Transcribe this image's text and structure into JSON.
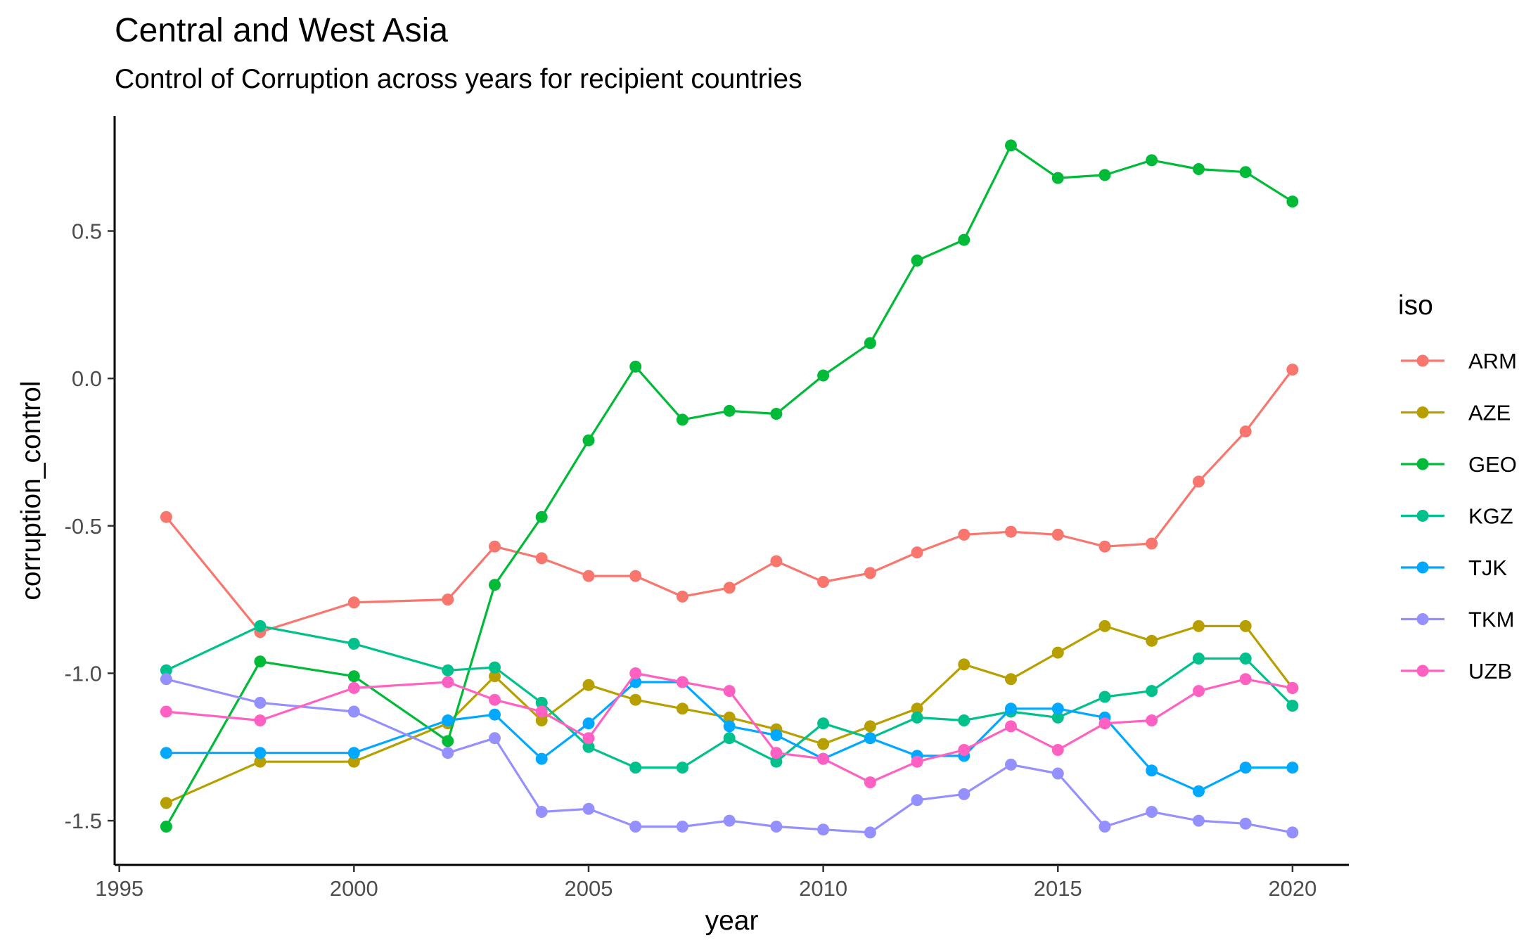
{
  "chart_data": {
    "type": "line",
    "title": "Central and West Asia",
    "subtitle": "Control of Corruption across years for recipient countries",
    "xlabel": "year",
    "ylabel": "corruption_control",
    "xlim": [
      1994.9,
      2021.2
    ],
    "ylim": [
      -1.65,
      0.89
    ],
    "x_ticks": [
      1995,
      2000,
      2005,
      2010,
      2015,
      2020
    ],
    "x_tick_labels": [
      "1995",
      "2000",
      "2005",
      "2010",
      "2015",
      "2020"
    ],
    "y_ticks": [
      -1.5,
      -1.0,
      -0.5,
      0.0,
      0.5
    ],
    "y_tick_labels": [
      "-1.5",
      "-1.0",
      "-0.5",
      "0.0",
      "0.5"
    ],
    "grid": false,
    "legend": {
      "title": "iso",
      "placement": "right"
    },
    "x": [
      1996,
      1998,
      2000,
      2002,
      2003,
      2004,
      2005,
      2006,
      2007,
      2008,
      2009,
      2010,
      2011,
      2012,
      2013,
      2014,
      2015,
      2016,
      2017,
      2018,
      2019,
      2020
    ],
    "series": [
      {
        "name": "ARM",
        "color": "#F8766D",
        "values": [
          -0.47,
          -0.86,
          -0.76,
          -0.75,
          -0.57,
          -0.61,
          -0.67,
          -0.67,
          -0.74,
          -0.71,
          -0.62,
          -0.69,
          -0.66,
          -0.59,
          -0.53,
          -0.52,
          -0.53,
          -0.57,
          -0.56,
          -0.35,
          -0.18,
          0.03
        ]
      },
      {
        "name": "AZE",
        "color": "#B79F00",
        "values": [
          -1.44,
          -1.3,
          -1.3,
          -1.17,
          -1.01,
          -1.16,
          -1.04,
          -1.09,
          -1.12,
          -1.15,
          -1.19,
          -1.24,
          -1.18,
          -1.12,
          -0.97,
          -1.02,
          -0.93,
          -0.84,
          -0.89,
          -0.84,
          -0.84,
          -1.05
        ]
      },
      {
        "name": "GEO",
        "color": "#00BA38",
        "values": [
          -1.52,
          -0.96,
          -1.01,
          -1.23,
          -0.7,
          -0.47,
          -0.21,
          0.04,
          -0.14,
          -0.11,
          -0.12,
          0.01,
          0.12,
          0.4,
          0.47,
          0.79,
          0.68,
          0.69,
          0.74,
          0.71,
          0.7,
          0.6
        ]
      },
      {
        "name": "KGZ",
        "color": "#00C08B",
        "values": [
          -0.99,
          -0.84,
          -0.9,
          -0.99,
          -0.98,
          -1.1,
          -1.25,
          -1.32,
          -1.32,
          -1.22,
          -1.3,
          -1.17,
          -1.22,
          -1.15,
          -1.16,
          -1.13,
          -1.15,
          -1.08,
          -1.06,
          -0.95,
          -0.95,
          -1.11
        ]
      },
      {
        "name": "TJK",
        "color": "#00A9FF",
        "values": [
          -1.27,
          -1.27,
          -1.27,
          -1.16,
          -1.14,
          -1.29,
          -1.17,
          -1.03,
          -1.03,
          -1.18,
          -1.21,
          -1.29,
          -1.22,
          -1.28,
          -1.28,
          -1.12,
          -1.12,
          -1.15,
          -1.33,
          -1.4,
          -1.32,
          -1.32
        ]
      },
      {
        "name": "TKM",
        "color": "#9590FF",
        "values": [
          -1.02,
          -1.1,
          -1.13,
          -1.27,
          -1.22,
          -1.47,
          -1.46,
          -1.52,
          -1.52,
          -1.5,
          -1.52,
          -1.53,
          -1.54,
          -1.43,
          -1.41,
          -1.31,
          -1.34,
          -1.52,
          -1.47,
          -1.5,
          -1.51,
          -1.54
        ]
      },
      {
        "name": "UZB",
        "color": "#FF61C3",
        "values": [
          -1.13,
          -1.16,
          -1.05,
          -1.03,
          -1.09,
          -1.13,
          -1.22,
          -1.0,
          -1.03,
          -1.06,
          -1.27,
          -1.29,
          -1.37,
          -1.3,
          -1.26,
          -1.18,
          -1.26,
          -1.17,
          -1.16,
          -1.06,
          -1.02,
          -1.05
        ]
      }
    ]
  }
}
